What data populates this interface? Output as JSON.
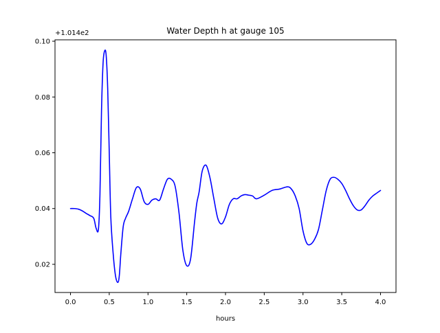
{
  "chart_data": {
    "type": "line",
    "title": "Water Depth h at gauge 105",
    "xlabel": "hours",
    "ylabel": "",
    "y_offset_label": "+1.014e2",
    "xlim": [
      -0.2,
      4.2
    ],
    "ylim": [
      0.0099,
      0.1005
    ],
    "x_ticks": [
      0.0,
      0.5,
      1.0,
      1.5,
      2.0,
      2.5,
      3.0,
      3.5,
      4.0
    ],
    "x_tick_labels": [
      "0.0",
      "0.5",
      "1.0",
      "1.5",
      "2.0",
      "2.5",
      "3.0",
      "3.5",
      "4.0"
    ],
    "y_ticks": [
      0.02,
      0.04,
      0.06,
      0.08,
      0.1
    ],
    "y_tick_labels": [
      "0.02",
      "0.04",
      "0.06",
      "0.08",
      "0.10"
    ],
    "grid": false,
    "legend": "none",
    "series": [
      {
        "color": "#0000ff",
        "x": [
          0.0,
          0.05,
          0.1,
          0.15,
          0.2,
          0.25,
          0.3,
          0.33,
          0.36,
          0.38,
          0.4,
          0.42,
          0.44,
          0.46,
          0.48,
          0.5,
          0.52,
          0.55,
          0.58,
          0.61,
          0.63,
          0.65,
          0.68,
          0.71,
          0.75,
          0.8,
          0.85,
          0.9,
          0.95,
          1.0,
          1.05,
          1.1,
          1.15,
          1.2,
          1.25,
          1.3,
          1.35,
          1.4,
          1.45,
          1.5,
          1.55,
          1.6,
          1.63,
          1.66,
          1.7,
          1.75,
          1.8,
          1.85,
          1.9,
          1.95,
          2.0,
          2.05,
          2.1,
          2.15,
          2.2,
          2.25,
          2.3,
          2.35,
          2.4,
          2.5,
          2.6,
          2.7,
          2.8,
          2.85,
          2.9,
          2.95,
          3.0,
          3.05,
          3.1,
          3.15,
          3.2,
          3.25,
          3.3,
          3.35,
          3.4,
          3.45,
          3.5,
          3.55,
          3.6,
          3.65,
          3.7,
          3.75,
          3.8,
          3.85,
          3.9,
          3.95,
          4.0
        ],
        "y": [
          0.04,
          0.04,
          0.0398,
          0.0392,
          0.0383,
          0.0375,
          0.0365,
          0.033,
          0.0325,
          0.045,
          0.075,
          0.092,
          0.0965,
          0.095,
          0.083,
          0.06,
          0.037,
          0.024,
          0.016,
          0.0135,
          0.016,
          0.024,
          0.0335,
          0.0365,
          0.039,
          0.0435,
          0.0475,
          0.047,
          0.0425,
          0.0415,
          0.043,
          0.0435,
          0.043,
          0.047,
          0.0505,
          0.0505,
          0.048,
          0.0385,
          0.025,
          0.0195,
          0.022,
          0.035,
          0.042,
          0.046,
          0.0535,
          0.0555,
          0.051,
          0.0435,
          0.0365,
          0.0345,
          0.037,
          0.0415,
          0.0435,
          0.0435,
          0.0445,
          0.045,
          0.0448,
          0.0445,
          0.0435,
          0.0448,
          0.0465,
          0.047,
          0.0478,
          0.047,
          0.0445,
          0.04,
          0.032,
          0.0275,
          0.0272,
          0.029,
          0.0325,
          0.0395,
          0.0465,
          0.0505,
          0.0512,
          0.0505,
          0.049,
          0.0465,
          0.0435,
          0.041,
          0.0395,
          0.0395,
          0.041,
          0.043,
          0.0445,
          0.0455,
          0.0465
        ]
      }
    ]
  }
}
